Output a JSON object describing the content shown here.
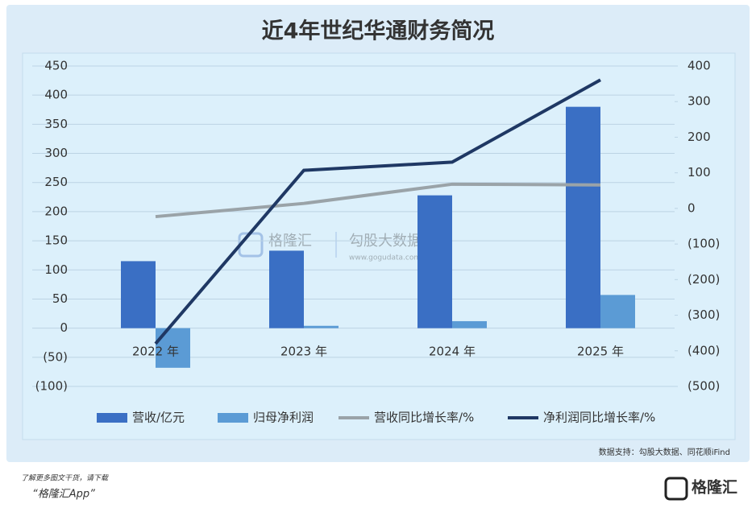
{
  "chart_data": {
    "type": "bar",
    "title": "近4年世纪华通财务简况",
    "categories": [
      "2022 年",
      "2023 年",
      "2024 年",
      "2025 年"
    ],
    "series": [
      {
        "name": "营收/亿元",
        "type": "bar",
        "color": "#3a6fc4",
        "values": [
          115,
          133,
          228,
          380
        ]
      },
      {
        "name": "归母净利润",
        "type": "bar",
        "color": "#5b9bd5",
        "values": [
          -68,
          4,
          12,
          57
        ]
      },
      {
        "name": "营收同比增长率/%",
        "type": "line",
        "axis": "y2",
        "color": "#9aa3a8",
        "values": [
          -23,
          14,
          68,
          66
        ]
      },
      {
        "name": "净利润同比增长率/%",
        "type": "line",
        "axis": "y2",
        "color": "#1f3864",
        "values": [
          -380,
          107,
          130,
          361
        ]
      }
    ],
    "ylim": [
      -100,
      450
    ],
    "yticks": [
      {
        "value": -100,
        "label": "(100)"
      },
      {
        "value": -50,
        "label": "(50)"
      },
      0,
      50,
      100,
      150,
      200,
      250,
      300,
      350,
      400,
      450
    ],
    "y2lim": [
      -500,
      400
    ],
    "y2ticks": [
      {
        "value": -500,
        "label": "(500)"
      },
      {
        "value": -400,
        "label": "(400)"
      },
      {
        "value": -300,
        "label": "(300)"
      },
      {
        "value": -200,
        "label": "(200)"
      },
      {
        "value": -100,
        "label": "(100)"
      },
      0,
      100,
      200,
      300,
      400
    ],
    "negative_label_color": "#c00000",
    "grid": true,
    "legend": "bottom",
    "source": "数据支持：勾股大数据、同花顺iFind",
    "watermark": [
      "格隆汇",
      "勾股大数据",
      "www.gogudata.com"
    ],
    "footer": {
      "prompt": "了解更多图文干货，请下载",
      "app": "“格隆汇App”",
      "logo": "格隆汇"
    }
  }
}
